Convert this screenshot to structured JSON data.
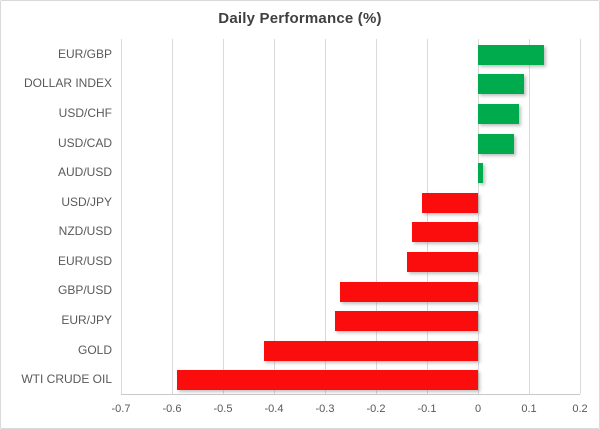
{
  "chart_data": {
    "type": "bar",
    "orientation": "horizontal",
    "title": "Daily Performance (%)",
    "xlabel": "",
    "ylabel": "",
    "categories": [
      "EUR/GBP",
      "DOLLAR INDEX",
      "USD/CHF",
      "USD/CAD",
      "AUD/USD",
      "USD/JPY",
      "NZD/USD",
      "EUR/USD",
      "GBP/USD",
      "EUR/JPY",
      "GOLD",
      "WTI CRUDE OIL"
    ],
    "values": [
      0.13,
      0.09,
      0.08,
      0.07,
      0.01,
      -0.11,
      -0.13,
      -0.14,
      -0.27,
      -0.28,
      -0.42,
      -0.59
    ],
    "xlim": [
      -0.7,
      0.2
    ],
    "xticks": [
      -0.7,
      -0.6,
      -0.5,
      -0.4,
      -0.3,
      -0.2,
      -0.1,
      0,
      0.1,
      0.2
    ],
    "xtick_labels": [
      "-0.7",
      "-0.6",
      "-0.5",
      "-0.4",
      "-0.3",
      "-0.2",
      "-0.1",
      "0",
      "0.1",
      "0.2"
    ],
    "grid": true,
    "legend": false,
    "positive_color": "#00ab4e",
    "negative_color": "#fc0d0d",
    "gridline_color": "#d9d9d9",
    "axis_line_color": "#c9c9c9",
    "title_color": "#404040",
    "label_color": "#595959"
  }
}
